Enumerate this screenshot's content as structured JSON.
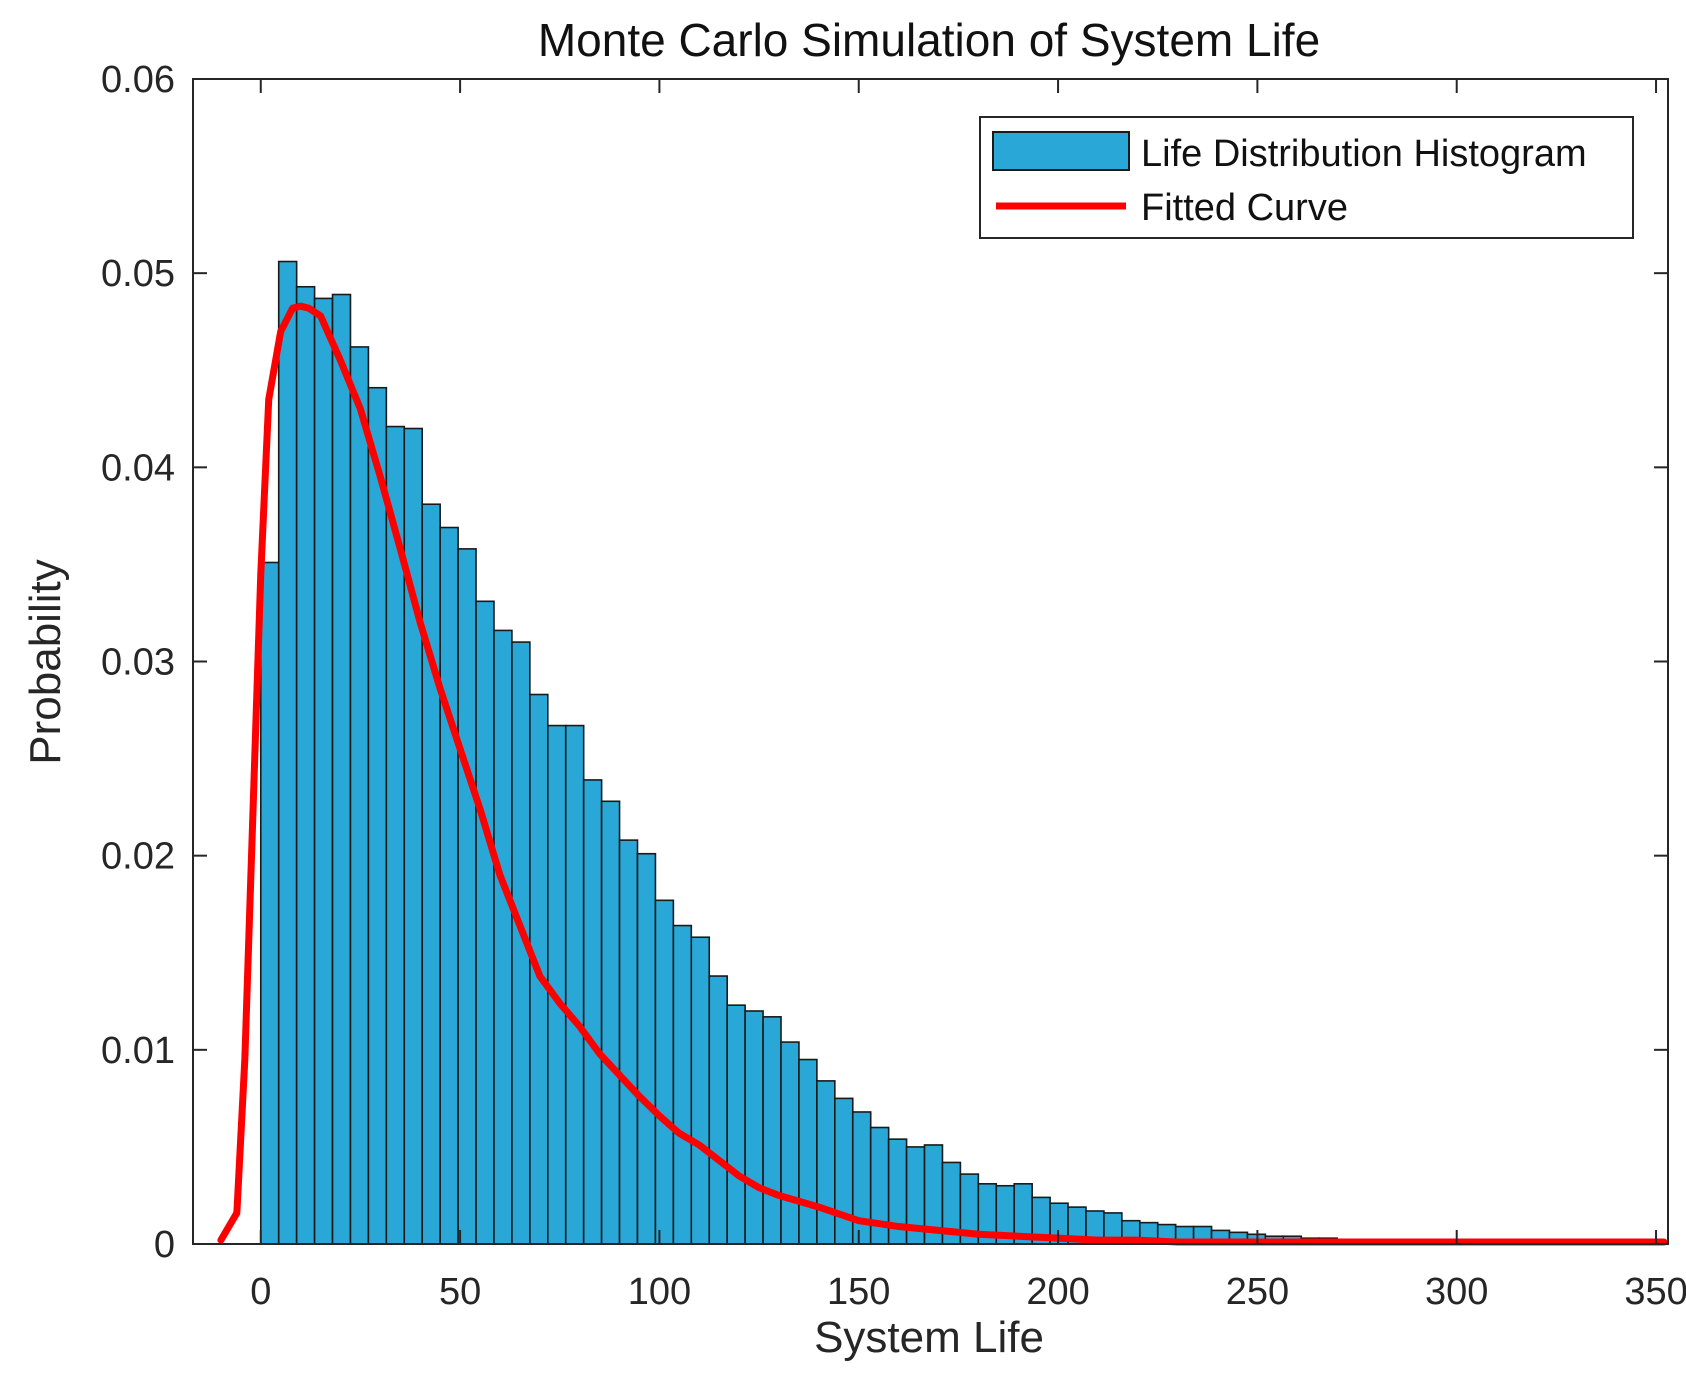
{
  "chart_data": {
    "type": "bar",
    "title": "Monte Carlo Simulation of System Life",
    "xlabel": "System Life",
    "ylabel": "Probability",
    "xlim": [
      -17,
      353
    ],
    "ylim": [
      0,
      0.06
    ],
    "xticks": [
      0,
      50,
      100,
      150,
      200,
      250,
      300,
      350
    ],
    "xtick_labels": [
      "0",
      "50",
      "100",
      "150",
      "200",
      "250",
      "300",
      "350"
    ],
    "yticks": [
      0,
      0.01,
      0.02,
      0.03,
      0.04,
      0.05,
      0.06
    ],
    "ytick_labels": [
      "0",
      "0.01",
      "0.02",
      "0.03",
      "0.04",
      "0.05",
      "0.06"
    ],
    "grid": false,
    "legend_position": "top-right",
    "colors": {
      "histogram": "#29a8d8",
      "edge": "#1a1a1a",
      "curve": "#ff0000"
    },
    "histogram": {
      "name": "Life Distribution Histogram",
      "bin_start": 0,
      "bin_width": 4.5,
      "values": [
        0.0351,
        0.0506,
        0.0493,
        0.0487,
        0.0489,
        0.0462,
        0.0441,
        0.0421,
        0.042,
        0.0381,
        0.0369,
        0.0358,
        0.0331,
        0.0316,
        0.031,
        0.0283,
        0.0267,
        0.0267,
        0.0239,
        0.0228,
        0.0208,
        0.0201,
        0.0177,
        0.0164,
        0.0158,
        0.0138,
        0.0123,
        0.012,
        0.0117,
        0.0104,
        0.0095,
        0.0084,
        0.0075,
        0.0068,
        0.006,
        0.0054,
        0.005,
        0.0051,
        0.0042,
        0.0036,
        0.0031,
        0.003,
        0.0031,
        0.0024,
        0.0021,
        0.0019,
        0.0017,
        0.0016,
        0.0012,
        0.0011,
        0.001,
        0.0009,
        0.0009,
        0.0007,
        0.0006,
        0.0005,
        0.0004,
        0.0004,
        0.0003,
        0.0003,
        0.0002,
        0.0002,
        0.0002,
        0.0001,
        0.0001,
        0.0001,
        0.0001,
        0.0001
      ]
    },
    "fitted_curve": {
      "name": "Fitted Curve",
      "x": [
        -10,
        -6,
        -4,
        -2,
        0,
        2,
        5,
        8,
        10,
        12,
        15,
        20,
        25,
        30,
        35,
        40,
        45,
        50,
        55,
        60,
        65,
        70,
        75,
        80,
        85,
        90,
        95,
        100,
        105,
        110,
        115,
        120,
        125,
        130,
        135,
        140,
        150,
        160,
        170,
        180,
        190,
        200,
        210,
        220,
        230,
        250,
        300,
        352
      ],
      "y": [
        0.0002,
        0.0016,
        0.0095,
        0.022,
        0.0345,
        0.0435,
        0.047,
        0.0482,
        0.0483,
        0.0482,
        0.0478,
        0.0455,
        0.043,
        0.0395,
        0.0358,
        0.032,
        0.0286,
        0.0255,
        0.0224,
        0.019,
        0.0164,
        0.0138,
        0.0124,
        0.0112,
        0.0098,
        0.0087,
        0.0076,
        0.0066,
        0.0057,
        0.0051,
        0.0043,
        0.0035,
        0.0029,
        0.0025,
        0.0022,
        0.0019,
        0.0012,
        0.0009,
        0.0007,
        0.0005,
        0.0004,
        0.0003,
        0.0002,
        0.0002,
        0.0001,
        0.0001,
        0.0001,
        0.0001
      ]
    }
  }
}
